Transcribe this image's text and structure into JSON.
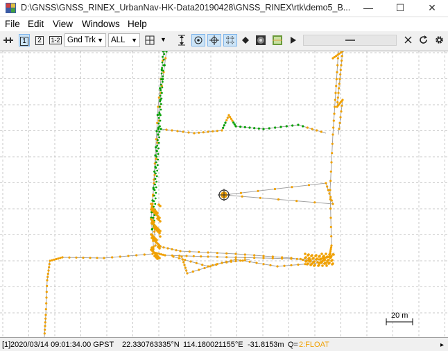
{
  "window": {
    "title": "D:\\GNSS\\GNSS_RINEX_UrbanNav-HK-Data20190428\\GNSS_RINEX\\rtk\\demo5_B...",
    "min_glyph": "—",
    "max_glyph": "☐",
    "close_glyph": "✕"
  },
  "menu": [
    "File",
    "Edit",
    "View",
    "Windows",
    "Help"
  ],
  "toolbar": {
    "btn1": "1",
    "btn2": "2",
    "btn12": "1-2",
    "plot_type": "Gnd Trk",
    "sat_select": "ALL"
  },
  "plot": {
    "scale_label": "20 m",
    "colors": {
      "grid": "#c8c8c8",
      "track": "#a0a0a0",
      "float": "#f0a000",
      "fix": "#00a000"
    }
  },
  "status": {
    "prefix": "[1]",
    "time": "2020/03/14 09:01:34.00 GPST",
    "lat": "22.330763335°N",
    "lon": "114.180021155°E",
    "height": "-31.8153m",
    "q_label": "Q=",
    "q_value": "2:FLOAT"
  }
}
